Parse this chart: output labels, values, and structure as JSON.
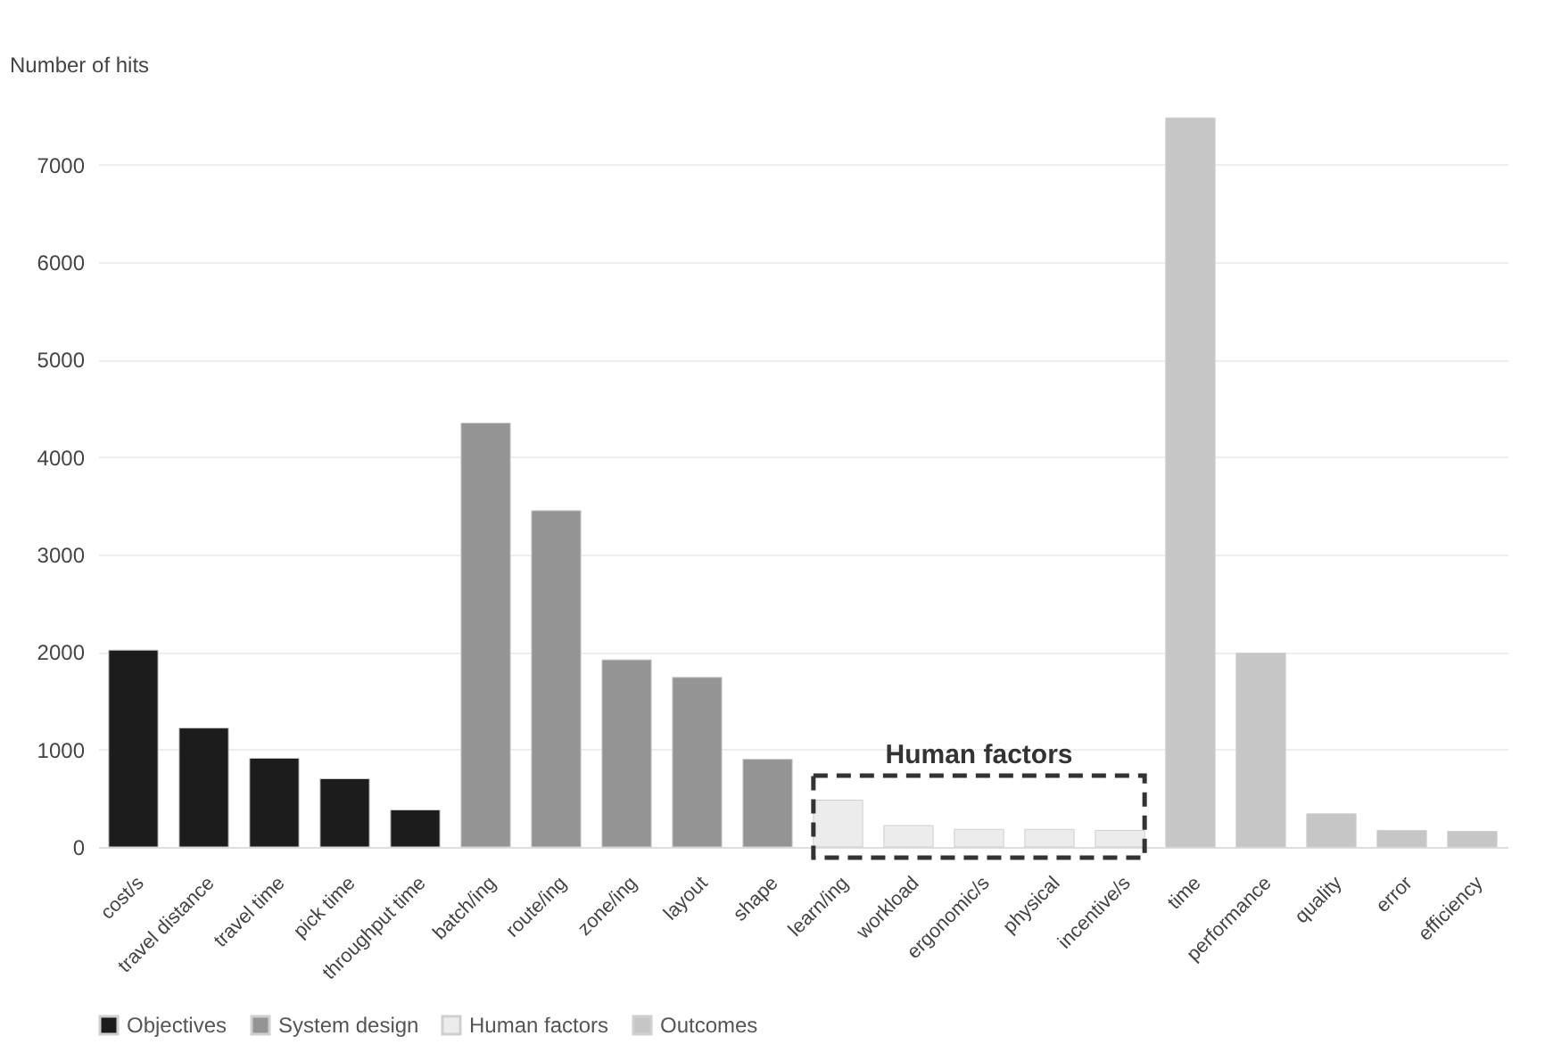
{
  "chart_data": {
    "type": "bar",
    "ylabel": "Number of hits",
    "categories": [
      "cost/s",
      "travel distance",
      "travel time",
      "pick time",
      "throughput time",
      "batch/ing",
      "route/ing",
      "zone/ing",
      "layout",
      "shape",
      "learn/ing",
      "workload",
      "ergonomic/s",
      "physical",
      "incentive/s",
      "time",
      "performance",
      "quality",
      "error",
      "efficiency"
    ],
    "series": [
      {
        "name": "Objectives",
        "color": "#1c1c1c",
        "values": [
          2020,
          1220,
          910,
          700,
          380,
          null,
          null,
          null,
          null,
          null,
          null,
          null,
          null,
          null,
          null,
          null,
          null,
          null,
          null,
          null
        ]
      },
      {
        "name": "System design",
        "color": "#949494",
        "values": [
          null,
          null,
          null,
          null,
          null,
          4350,
          3450,
          1920,
          1740,
          900,
          null,
          null,
          null,
          null,
          null,
          null,
          null,
          null,
          null,
          null
        ]
      },
      {
        "name": "Human factors",
        "color": "#ececec",
        "values": [
          null,
          null,
          null,
          null,
          null,
          null,
          null,
          null,
          null,
          null,
          480,
          220,
          180,
          180,
          170,
          null,
          null,
          null,
          null,
          null
        ]
      },
      {
        "name": "Outcomes",
        "color": "#c6c6c6",
        "values": [
          null,
          null,
          null,
          null,
          null,
          null,
          null,
          null,
          null,
          null,
          null,
          null,
          null,
          null,
          null,
          7480,
          1990,
          340,
          170,
          160
        ]
      }
    ],
    "ylim": [
      0,
      7500
    ],
    "yticks": [
      0,
      1000,
      2000,
      3000,
      4000,
      5000,
      6000,
      7000
    ],
    "grid": "y",
    "legend": "bottom",
    "annotations": [
      "Human factors"
    ]
  }
}
